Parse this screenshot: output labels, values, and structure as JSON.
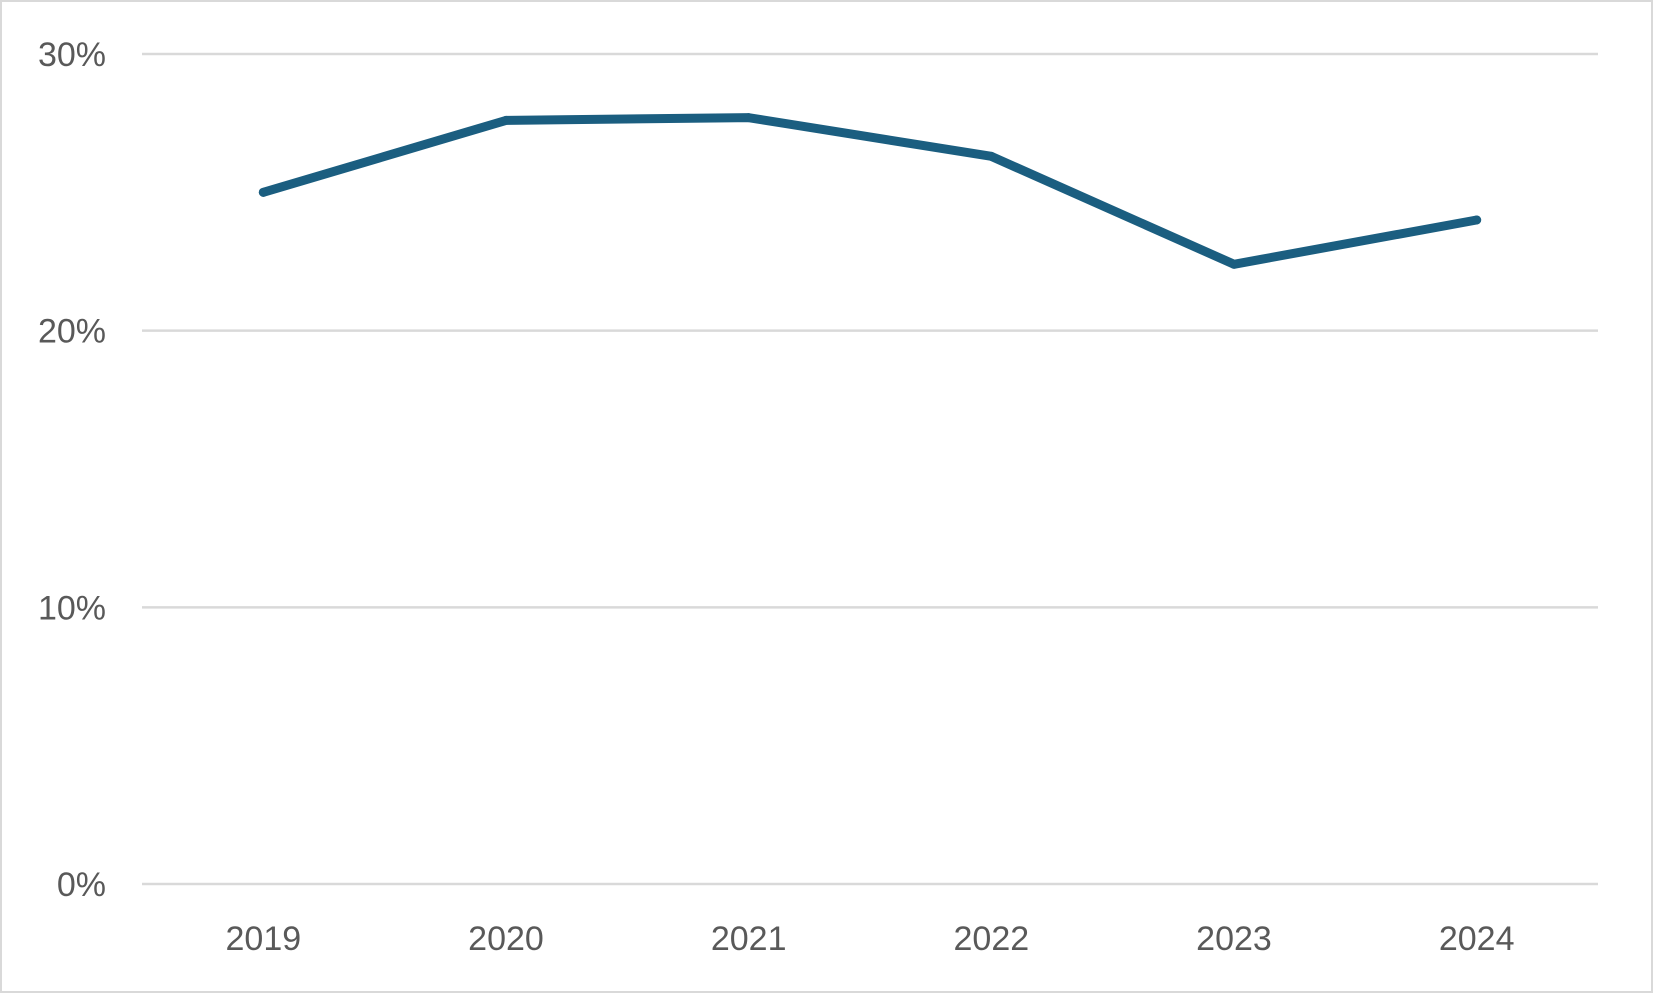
{
  "colors": {
    "line": "#1b5e80",
    "grid": "#d9d9d9",
    "text": "#595959",
    "border": "#d9d9d9"
  },
  "chart_data": {
    "type": "line",
    "title": "",
    "xlabel": "",
    "ylabel": "",
    "categories": [
      "2019",
      "2020",
      "2021",
      "2022",
      "2023",
      "2024"
    ],
    "series": [
      {
        "values": [
          25.0,
          27.6,
          27.7,
          26.3,
          22.4,
          24.0
        ]
      }
    ],
    "ylim": [
      0,
      30
    ],
    "yticks": [
      0,
      10,
      20,
      30
    ],
    "ytick_labels": [
      "0%",
      "10%",
      "20%",
      "30%"
    ],
    "grid": true,
    "legend": "none"
  }
}
